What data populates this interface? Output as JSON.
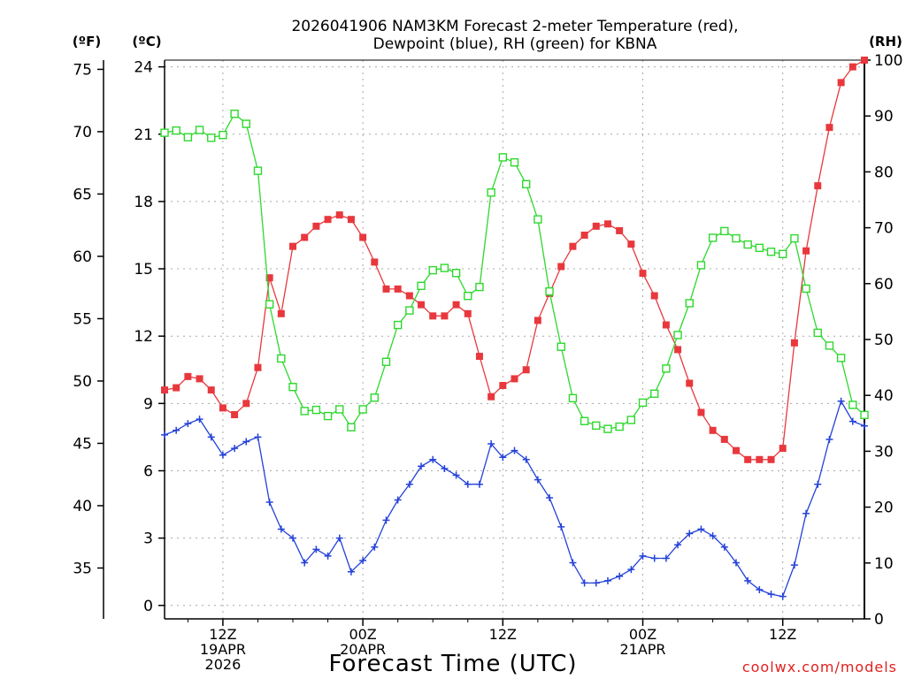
{
  "chart_data": {
    "type": "line",
    "title_line1": "2026041906 NAM3KM Forecast 2-meter Temperature (red),",
    "title_line2": "Dewpoint (blue), RH (green) for KBNA",
    "xlabel": "Forecast Time (UTC)",
    "credit": "coolwx.com/models",
    "unit_f": "(ºF)",
    "unit_c": "(ºC)",
    "unit_rh": "(RH)",
    "x_hours_range": [
      1,
      61
    ],
    "x_ticks": [
      {
        "hour": 6,
        "lines": [
          "12Z",
          "19APR",
          "2026"
        ]
      },
      {
        "hour": 18,
        "lines": [
          "00Z",
          "20APR"
        ]
      },
      {
        "hour": 30,
        "lines": [
          "12Z"
        ]
      },
      {
        "hour": 42,
        "lines": [
          "00Z",
          "21APR"
        ]
      },
      {
        "hour": 54,
        "lines": [
          "12Z"
        ]
      }
    ],
    "y_c_range": [
      -0.6,
      24.3
    ],
    "y_c_ticks": [
      0,
      3,
      6,
      9,
      12,
      15,
      18,
      21,
      24
    ],
    "y_f_ticks": [
      35,
      40,
      45,
      50,
      55,
      60,
      65,
      70,
      75
    ],
    "y_rh_range": [
      0,
      100
    ],
    "y_rh_ticks": [
      0,
      10,
      20,
      30,
      40,
      50,
      60,
      70,
      80,
      90,
      100
    ],
    "series": [
      {
        "name": "Temperature",
        "unit": "C",
        "color": "#e8383d",
        "marker": "filled-square",
        "values": [
          9.6,
          9.7,
          10.2,
          10.1,
          9.6,
          8.8,
          8.5,
          9.0,
          10.6,
          14.6,
          13.0,
          16.0,
          16.4,
          16.9,
          17.2,
          17.4,
          17.2,
          16.4,
          15.3,
          14.1,
          14.1,
          13.8,
          13.4,
          12.9,
          12.9,
          13.4,
          13.0,
          11.1,
          9.3,
          9.8,
          10.1,
          10.5,
          12.7,
          13.9,
          15.1,
          16.0,
          16.5,
          16.9,
          17.0,
          16.7,
          16.1,
          14.8,
          13.8,
          12.5,
          11.4,
          9.9,
          8.6,
          7.8,
          7.4,
          6.9,
          6.5,
          6.5,
          6.5,
          7.0,
          11.7,
          15.8,
          18.7,
          21.3,
          23.3,
          24.0,
          24.3
        ]
      },
      {
        "name": "Dewpoint",
        "unit": "C",
        "color": "#2442d8",
        "marker": "plus",
        "values": [
          7.6,
          7.8,
          8.1,
          8.3,
          7.5,
          6.7,
          7.0,
          7.3,
          7.5,
          4.6,
          3.4,
          3.0,
          1.9,
          2.5,
          2.2,
          3.0,
          1.5,
          2.0,
          2.6,
          3.8,
          4.7,
          5.4,
          6.2,
          6.5,
          6.1,
          5.8,
          5.4,
          5.4,
          7.2,
          6.6,
          6.9,
          6.5,
          5.6,
          4.8,
          3.5,
          1.9,
          1.0,
          1.0,
          1.1,
          1.3,
          1.6,
          2.2,
          2.1,
          2.1,
          2.7,
          3.2,
          3.4,
          3.1,
          2.6,
          1.9,
          1.1,
          0.7,
          0.5,
          0.4,
          1.8,
          4.1,
          5.4,
          7.4,
          9.1,
          8.2,
          8.0
        ]
      },
      {
        "name": "RH",
        "unit": "%",
        "color": "#2ed82e",
        "marker": "open-square",
        "values": [
          87,
          87.4,
          86.2,
          87.5,
          86.1,
          86.6,
          90.4,
          88.6,
          80.2,
          56.3,
          46.6,
          41.5,
          37.2,
          37.4,
          36.3,
          37.5,
          34.3,
          37.5,
          39.6,
          46.0,
          52.6,
          55.2,
          59.6,
          62.4,
          62.8,
          61.9,
          57.8,
          59.4,
          76.3,
          82.6,
          81.7,
          77.8,
          71.5,
          58.6,
          48.7,
          39.5,
          35.4,
          34.6,
          34.0,
          34.4,
          35.6,
          38.7,
          40.3,
          44.8,
          50.8,
          56.5,
          63.3,
          68.2,
          69.4,
          68.1,
          67.0,
          66.4,
          65.7,
          65.3,
          68.1,
          59.1,
          51.2,
          48.9,
          46.7,
          38.3,
          36.5
        ]
      }
    ]
  }
}
